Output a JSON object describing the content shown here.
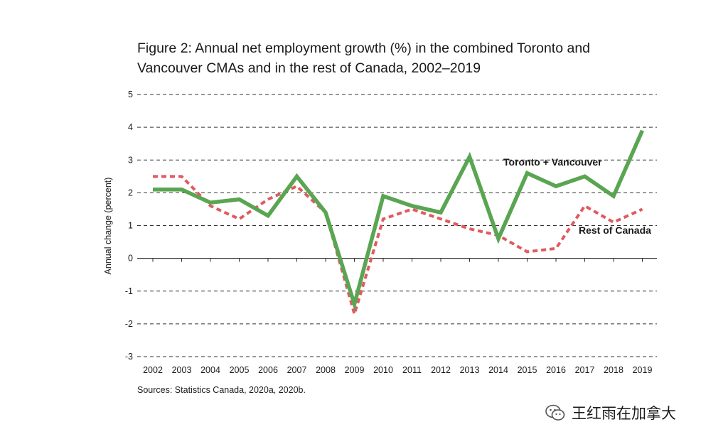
{
  "title_lines": [
    "Figure 2: Annual net employment growth (%) in the combined Toronto and",
    "Vancouver CMAs and in the rest of Canada, 2002–2019"
  ],
  "source": "Sources: Statistics Canada, 2020a, 2020b.",
  "watermark": "王红雨在加拿大",
  "colors": {
    "toronto": "#5aa552",
    "rest": "#e05a60",
    "grid": "#333333"
  },
  "chart_data": {
    "type": "line",
    "title": "Figure 2: Annual net employment growth (%) in the combined Toronto and Vancouver CMAs and in the rest of Canada, 2002–2019",
    "xlabel": "",
    "ylabel": "Annual change (percent)",
    "ylim": [
      -3,
      5
    ],
    "yticks": [
      5,
      4,
      3,
      2,
      1,
      0,
      -1,
      -2,
      -3
    ],
    "grid": true,
    "categories": [
      "2002",
      "2003",
      "2004",
      "2005",
      "2006",
      "2007",
      "2008",
      "2009",
      "2010",
      "2011",
      "2012",
      "2013",
      "2014",
      "2015",
      "2016",
      "2017",
      "2018",
      "2019"
    ],
    "series": [
      {
        "name": "Toronto + Vancouver",
        "style": "solid",
        "values": [
          2.1,
          2.1,
          1.7,
          1.8,
          1.3,
          2.5,
          1.4,
          -1.4,
          1.9,
          1.6,
          1.4,
          3.1,
          0.6,
          2.6,
          2.2,
          2.5,
          1.9,
          3.9
        ]
      },
      {
        "name": "Rest of Canada",
        "style": "dashed",
        "values": [
          2.5,
          2.5,
          1.6,
          1.2,
          1.8,
          2.2,
          1.4,
          -1.7,
          1.2,
          1.5,
          1.2,
          0.9,
          0.7,
          0.2,
          0.3,
          1.6,
          1.1,
          1.5
        ]
      }
    ]
  }
}
